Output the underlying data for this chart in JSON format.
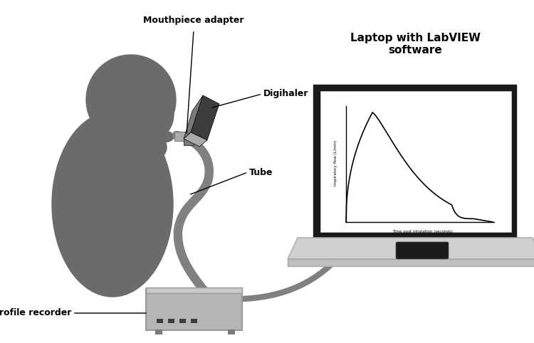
{
  "bg_color": "#ffffff",
  "person_color": "#6b6b6b",
  "device_dark": "#3d3d3d",
  "device_mid": "#7a7a7a",
  "device_light": "#aaaaaa",
  "device_lighter": "#c8c8c8",
  "laptop_screen_bg": "#ffffff",
  "laptop_body_color": "#c0c0c0",
  "laptop_base_color": "#d0d0d0",
  "laptop_black": "#1a1a1a",
  "recorder_color": "#b5b5b5",
  "tube_color": "#808080",
  "annotation_color": "#000000",
  "label_mouthpiece": "Mouthpiece adapter",
  "label_digihaler": "Digihaler",
  "label_tube": "Tube",
  "label_laptop": "Laptop with LabVIEW\nsoftware",
  "label_recorder": "Inhalation profile recorder",
  "xlabel": "Time post inhalation (seconds)",
  "ylabel": "Inspiratory flow (L/min)"
}
